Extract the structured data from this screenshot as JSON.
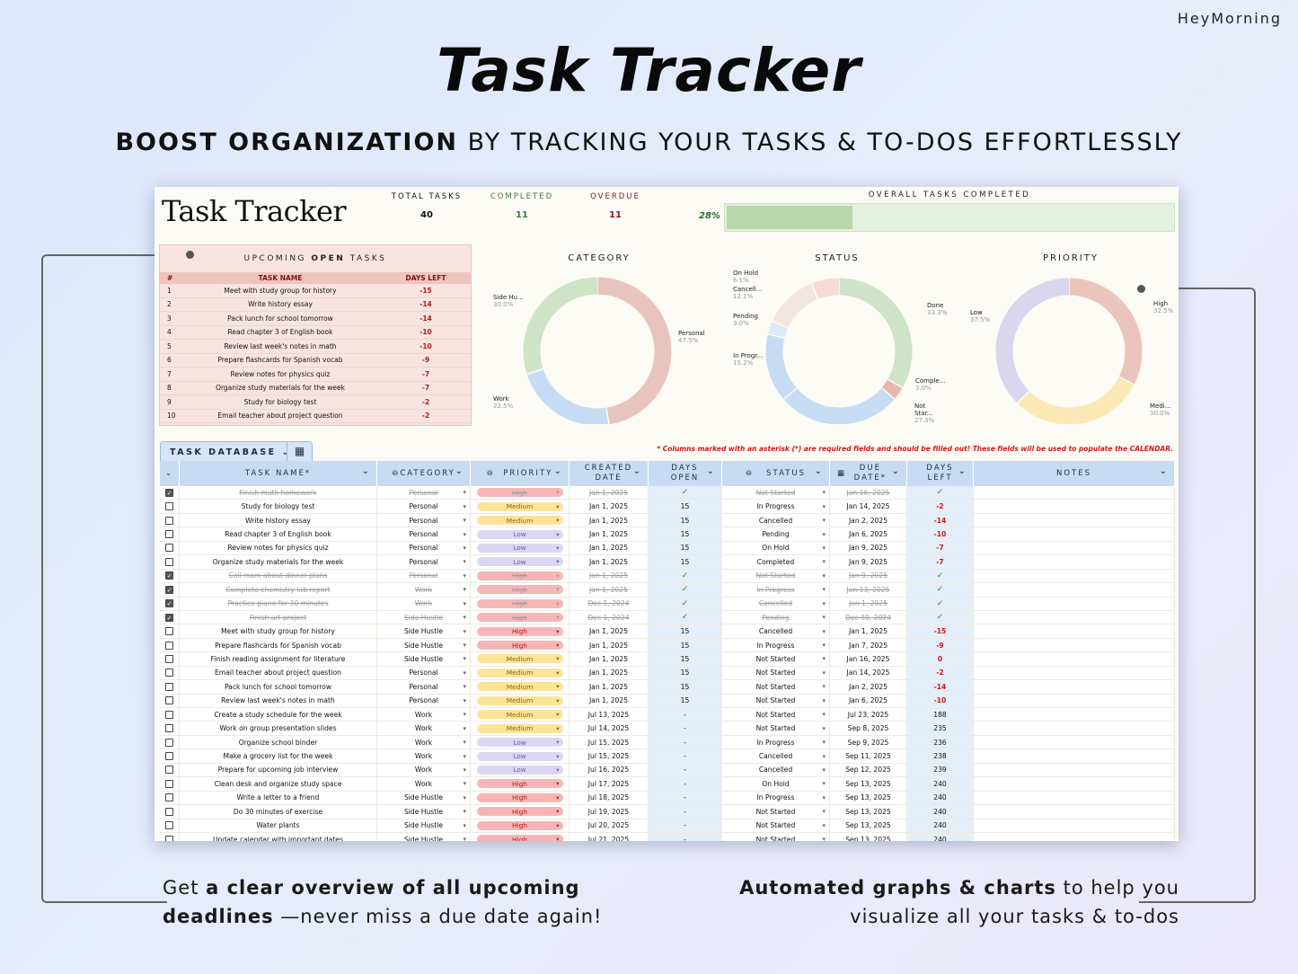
{
  "brand": "HeyMorning",
  "hero": {
    "title": "Task Tracker",
    "subtitle_bold": "BOOST ORGANIZATION",
    "subtitle_rest": " BY TRACKING YOUR TASKS & TO-DOS EFFORTLESSLY"
  },
  "sheet": {
    "title": "Task Tracker",
    "stats": {
      "total_label": "TOTAL TASKS",
      "total": "40",
      "completed_label": "COMPLETED",
      "completed": "11",
      "overdue_label": "OVERDUE",
      "overdue": "11",
      "percent": "28%"
    },
    "overall_label": "OVERALL TASKS COMPLETED",
    "overall_fraction": 0.28,
    "upcoming": {
      "head_pre": "UPCOMING ",
      "head_bold": "OPEN",
      "head_post": " TASKS",
      "col_num": "#",
      "col_task": "TASK NAME",
      "col_days": "DAYS LEFT",
      "rows": [
        {
          "n": "1",
          "task": "Meet with study group for history",
          "days": "-15"
        },
        {
          "n": "2",
          "task": "Write history essay",
          "days": "-14"
        },
        {
          "n": "3",
          "task": "Pack lunch for school tomorrow",
          "days": "-14"
        },
        {
          "n": "4",
          "task": "Read chapter 3 of English book",
          "days": "-10"
        },
        {
          "n": "5",
          "task": "Review last week's notes in math",
          "days": "-10"
        },
        {
          "n": "6",
          "task": "Prepare flashcards for Spanish vocab",
          "days": "-9"
        },
        {
          "n": "7",
          "task": "Review notes for physics quiz",
          "days": "-7"
        },
        {
          "n": "8",
          "task": "Organize study materials for the week",
          "days": "-7"
        },
        {
          "n": "9",
          "task": "Study for biology test",
          "days": "-2"
        },
        {
          "n": "10",
          "task": "Email teacher about project question",
          "days": "-2"
        }
      ]
    },
    "charts": {
      "category": {
        "title": "CATEGORY",
        "slices": [
          {
            "name": "Personal",
            "pct": "47.5%",
            "value": 47.5,
            "color": "#e8c4bc"
          },
          {
            "name": "Work",
            "pct": "22.5%",
            "value": 22.5,
            "color": "#c5dcf2"
          },
          {
            "name": "Side Hu...",
            "pct": "30.0%",
            "value": 30.0,
            "color": "#cfe3c6"
          }
        ]
      },
      "status": {
        "title": "STATUS",
        "slices": [
          {
            "name": "Done",
            "pct": "33.3%",
            "value": 33.3,
            "color": "#cfe3c6"
          },
          {
            "name": "Comple...",
            "pct": "3.0%",
            "value": 3.0,
            "color": "#eab7ad"
          },
          {
            "name": "Not Star...",
            "pct": "27.3%",
            "value": 27.3,
            "color": "#c5dcf2"
          },
          {
            "name": "In Progr...",
            "pct": "15.2%",
            "value": 15.2,
            "color": "#c5dcf2"
          },
          {
            "name": "Pending",
            "pct": "3.0%",
            "value": 3.0,
            "color": "#dce8f6"
          },
          {
            "name": "Cancell...",
            "pct": "12.1%",
            "value": 12.1,
            "color": "#f3e6e2"
          },
          {
            "name": "On Hold",
            "pct": "6.1%",
            "value": 6.1,
            "color": "#f6dcd5"
          }
        ]
      },
      "priority": {
        "title": "PRIORITY",
        "slices": [
          {
            "name": "High",
            "pct": "32.5%",
            "value": 32.5,
            "color": "#ebc5bc"
          },
          {
            "name": "Medi...",
            "pct": "30.0%",
            "value": 30.0,
            "color": "#fbe9b5"
          },
          {
            "name": "Low",
            "pct": "37.5%",
            "value": 37.5,
            "color": "#dad6ee"
          }
        ]
      }
    },
    "tab_label": "TASK DATABASE",
    "note": "* Columns marked with an asterisk (*) are required fields and should be filled out! These fields will be used to populate the CALENDAR.",
    "headers": {
      "task": "TASK NAME*",
      "category": "CATEGORY",
      "priority": "PRIORITY",
      "created": "CREATED DATE",
      "open": "DAYS OPEN",
      "status": "STATUS",
      "due": "DUE DATE*",
      "left": "DAYS LEFT",
      "notes": "NOTES"
    },
    "rows": [
      {
        "done": true,
        "task": "Finish math homework",
        "cat": "Personal",
        "pri": "High",
        "created": "Jan 1, 2025",
        "open": "✓",
        "status": "Not Started",
        "due": "Jan 16, 2025",
        "left": "✓"
      },
      {
        "done": false,
        "task": "Study for biology test",
        "cat": "Personal",
        "pri": "Medium",
        "created": "Jan 1, 2025",
        "open": "15",
        "status": "In Progress",
        "due": "Jan 14, 2025",
        "left": "-2"
      },
      {
        "done": false,
        "task": "Write history essay",
        "cat": "Personal",
        "pri": "Medium",
        "created": "Jan 1, 2025",
        "open": "15",
        "status": "Cancelled",
        "due": "Jan 2, 2025",
        "left": "-14"
      },
      {
        "done": false,
        "task": "Read chapter 3 of English book",
        "cat": "Personal",
        "pri": "Low",
        "created": "Jan 1, 2025",
        "open": "15",
        "status": "Pending",
        "due": "Jan 6, 2025",
        "left": "-10"
      },
      {
        "done": false,
        "task": "Review notes for physics quiz",
        "cat": "Personal",
        "pri": "Low",
        "created": "Jan 1, 2025",
        "open": "15",
        "status": "On Hold",
        "due": "Jan 9, 2025",
        "left": "-7"
      },
      {
        "done": false,
        "task": "Organize study materials for the week",
        "cat": "Personal",
        "pri": "Low",
        "created": "Jan 1, 2025",
        "open": "15",
        "status": "Completed",
        "due": "Jan 9, 2025",
        "left": "-7"
      },
      {
        "done": true,
        "task": "Call mom about dinner plans",
        "cat": "Personal",
        "pri": "High",
        "created": "Jan 1, 2025",
        "open": "✓",
        "status": "Not Started",
        "due": "Jan 9, 2025",
        "left": "✓"
      },
      {
        "done": true,
        "task": "Complete chemistry lab report",
        "cat": "Work",
        "pri": "High",
        "created": "Jan 1, 2025",
        "open": "✓",
        "status": "In Progress",
        "due": "Jan 13, 2025",
        "left": "✓"
      },
      {
        "done": true,
        "task": "Practice piano for 30 minutes",
        "cat": "Work",
        "pri": "High",
        "created": "Dec 1, 2024",
        "open": "✓",
        "status": "Cancelled",
        "due": "Jan 1, 2025",
        "left": "✓"
      },
      {
        "done": true,
        "task": "Finish art project",
        "cat": "Side Hustle",
        "pri": "High",
        "created": "Dec 1, 2024",
        "open": "✓",
        "status": "Pending",
        "due": "Dec 30, 2024",
        "left": "✓"
      },
      {
        "done": false,
        "task": "Meet with study group for history",
        "cat": "Side Hustle",
        "pri": "High",
        "created": "Jan 1, 2025",
        "open": "15",
        "status": "Cancelled",
        "due": "Jan 1, 2025",
        "left": "-15"
      },
      {
        "done": false,
        "task": "Prepare flashcards for Spanish vocab",
        "cat": "Side Hustle",
        "pri": "High",
        "created": "Jan 1, 2025",
        "open": "15",
        "status": "In Progress",
        "due": "Jan 7, 2025",
        "left": "-9"
      },
      {
        "done": false,
        "task": "Finish reading assignment for literature",
        "cat": "Side Hustle",
        "pri": "Medium",
        "created": "Jan 1, 2025",
        "open": "15",
        "status": "Not Started",
        "due": "Jan 16, 2025",
        "left": "0"
      },
      {
        "done": false,
        "task": "Email teacher about project question",
        "cat": "Personal",
        "pri": "Medium",
        "created": "Jan 1, 2025",
        "open": "15",
        "status": "Not Started",
        "due": "Jan 14, 2025",
        "left": "-2"
      },
      {
        "done": false,
        "task": "Pack lunch for school tomorrow",
        "cat": "Personal",
        "pri": "Medium",
        "created": "Jan 1, 2025",
        "open": "15",
        "status": "Not Started",
        "due": "Jan 2, 2025",
        "left": "-14"
      },
      {
        "done": false,
        "task": "Review last week's notes in math",
        "cat": "Personal",
        "pri": "Medium",
        "created": "Jan 1, 2025",
        "open": "15",
        "status": "Not Started",
        "due": "Jan 6, 2025",
        "left": "-10"
      },
      {
        "done": false,
        "task": "Create a study schedule for the week",
        "cat": "Work",
        "pri": "Medium",
        "created": "Jul 13, 2025",
        "open": "-",
        "status": "Not Started",
        "due": "Jul 23, 2025",
        "left": "188"
      },
      {
        "done": false,
        "task": "Work on group presentation slides",
        "cat": "Work",
        "pri": "Medium",
        "created": "Jul 14, 2025",
        "open": "-",
        "status": "Not Started",
        "due": "Sep 8, 2025",
        "left": "235"
      },
      {
        "done": false,
        "task": "Organize school binder",
        "cat": "Work",
        "pri": "Low",
        "created": "Jul 15, 2025",
        "open": "-",
        "status": "In Progress",
        "due": "Sep 9, 2025",
        "left": "236"
      },
      {
        "done": false,
        "task": "Make a grocery list for the week",
        "cat": "Work",
        "pri": "Low",
        "created": "Jul 15, 2025",
        "open": "-",
        "status": "Cancelled",
        "due": "Sep 11, 2025",
        "left": "238"
      },
      {
        "done": false,
        "task": "Prepare for upcoming job interview",
        "cat": "Work",
        "pri": "Low",
        "created": "Jul 16, 2025",
        "open": "-",
        "status": "Cancelled",
        "due": "Sep 12, 2025",
        "left": "239"
      },
      {
        "done": false,
        "task": "Clean desk and organize study space",
        "cat": "Work",
        "pri": "High",
        "created": "Jul 17, 2025",
        "open": "-",
        "status": "On Hold",
        "due": "Sep 13, 2025",
        "left": "240"
      },
      {
        "done": false,
        "task": "Write a letter to a friend",
        "cat": "Side Hustle",
        "pri": "High",
        "created": "Jul 18, 2025",
        "open": "-",
        "status": "In Progress",
        "due": "Sep 13, 2025",
        "left": "240"
      },
      {
        "done": false,
        "task": "Do 30 minutes of exercise",
        "cat": "Side Hustle",
        "pri": "High",
        "created": "Jul 19, 2025",
        "open": "-",
        "status": "Not Started",
        "due": "Sep 13, 2025",
        "left": "240"
      },
      {
        "done": false,
        "task": "Water plants",
        "cat": "Side Hustle",
        "pri": "High",
        "created": "Jul 20, 2025",
        "open": "-",
        "status": "Not Started",
        "due": "Sep 13, 2025",
        "left": "240"
      },
      {
        "done": false,
        "task": "Update calendar with important dates",
        "cat": "Side Hustle",
        "pri": "High",
        "created": "Jul 21, 2025",
        "open": "-",
        "status": "Not Started",
        "due": "Sep 13, 2025",
        "left": "240"
      }
    ]
  },
  "captions": {
    "left_pre": "Get ",
    "left_bold1": "a clear overview of all upcoming",
    "left_bold2": "deadlines",
    "left_post": " —never miss a due date again!",
    "right_bold": "Automated graphs & charts",
    "right_post1": " to help you",
    "right_post2": "visualize all your tasks & to-dos"
  }
}
